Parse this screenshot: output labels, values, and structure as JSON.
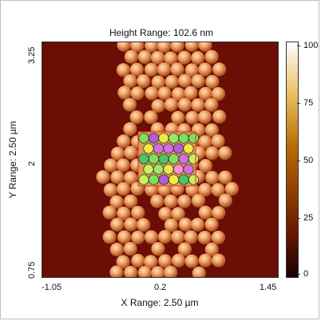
{
  "image": {
    "title": "Height Range:  102.6 nm",
    "y_axis_label": "Y Range:  2.50 µm",
    "x_axis_label": "X Range:  2.50 µm",
    "y_ticks": [
      "3.25",
      "2",
      "0.75"
    ],
    "x_ticks": [
      "-1.05",
      "0.2",
      "1.45"
    ],
    "colorbar_ticks": [
      "100",
      "75",
      "50",
      "25",
      "0"
    ],
    "colormap": {
      "low": "#1a0000",
      "mid": "#b86a00",
      "high": "#ffffff",
      "background": "#6b0e06"
    }
  }
}
